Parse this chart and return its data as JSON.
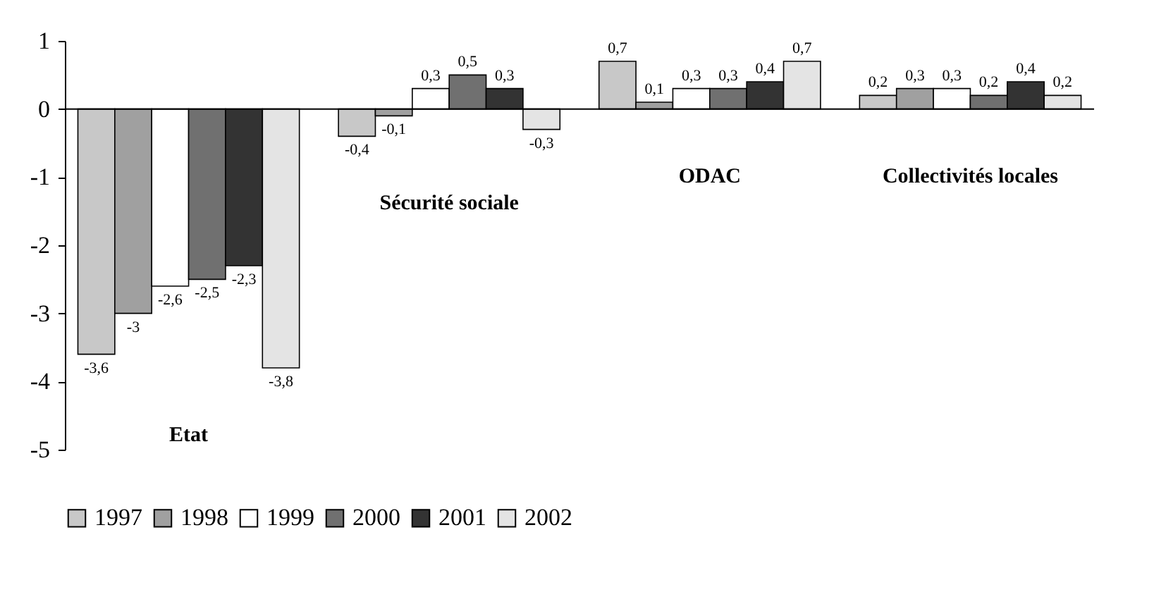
{
  "chart_data": {
    "type": "bar",
    "categories": [
      "Etat",
      "Sécurité sociale",
      "ODAC",
      "Collectivités locales"
    ],
    "series": [
      {
        "name": "1997",
        "color": "#c8c8c8",
        "values": [
          -3.6,
          -0.4,
          0.7,
          0.2
        ]
      },
      {
        "name": "1998",
        "color": "#a0a0a0",
        "values": [
          -3,
          -0.1,
          0.1,
          0.3
        ]
      },
      {
        "name": "1999",
        "color": "#ffffff",
        "values": [
          -2.6,
          0.3,
          0.3,
          0.3
        ]
      },
      {
        "name": "2000",
        "color": "#707070",
        "values": [
          -2.5,
          0.5,
          0.3,
          0.2
        ]
      },
      {
        "name": "2001",
        "color": "#333333",
        "values": [
          -2.3,
          0.3,
          0.4,
          0.4
        ]
      },
      {
        "name": "2002",
        "color": "#e4e4e4",
        "values": [
          -3.8,
          -0.3,
          0.7,
          0.2
        ]
      }
    ],
    "ylim": [
      -5,
      1
    ],
    "yticks": [
      -5,
      -4,
      -3,
      -2,
      -1,
      0,
      1
    ],
    "legend": "bottom",
    "grid": false,
    "ref_lines": [
      {
        "axis": "y",
        "value": 0,
        "color": "#000000"
      }
    ],
    "value_labels": [
      [
        "-3,6",
        "-0,4",
        "0,7",
        "0,2"
      ],
      [
        "-3",
        "-0,1",
        "0,1",
        "0,3"
      ],
      [
        "-2,6",
        "0,3",
        "0,3",
        "0,3"
      ],
      [
        "-2,5",
        "0,5",
        "0,3",
        "0,2"
      ],
      [
        "-2,3",
        "0,3",
        "0,4",
        "0,4"
      ],
      [
        "-3,8",
        "-0,3",
        "0,7",
        "0,2"
      ]
    ]
  }
}
